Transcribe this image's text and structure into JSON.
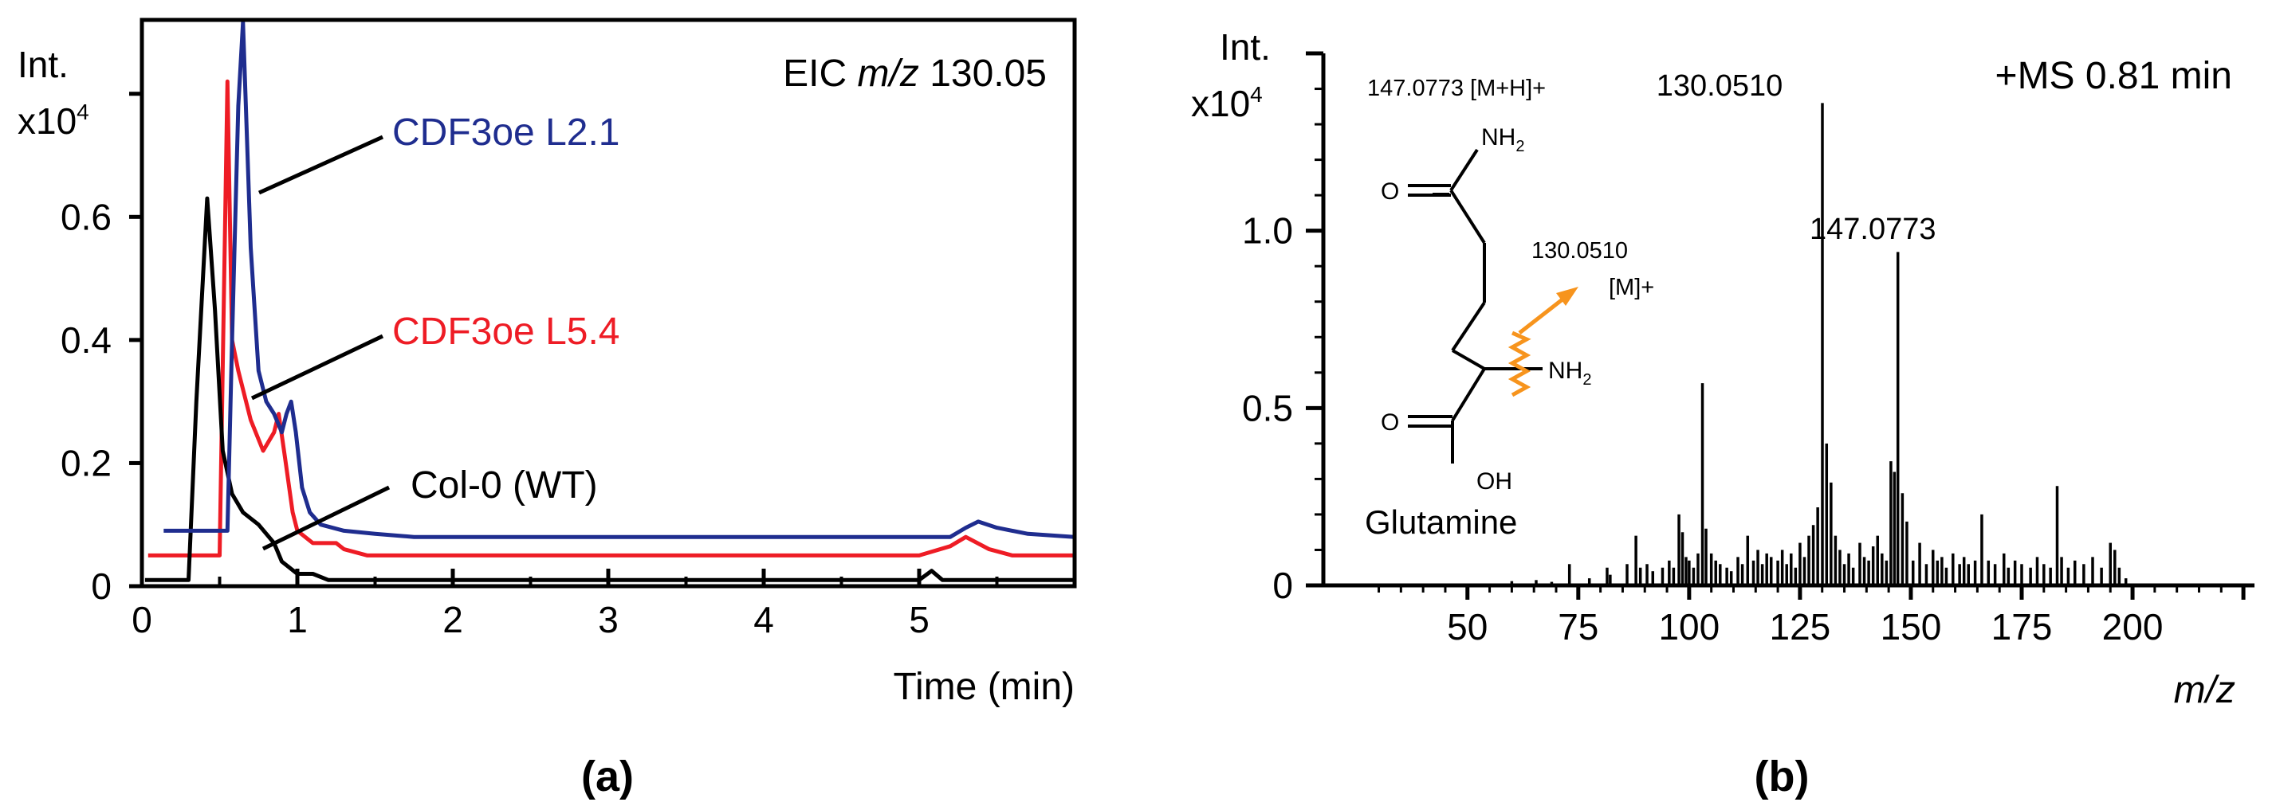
{
  "panels": {
    "a_label": "(a)",
    "b_label": "(b)"
  },
  "chart_data": [
    {
      "type": "line",
      "panel": "(a)",
      "annotation": "EIC",
      "annotation_mz": "m/z",
      "annotation_value": "130.05",
      "ylabel_line1": "Int.",
      "ylabel_line2": "x10",
      "ylabel_exp": "4",
      "xlabel": "Time (min)",
      "xlim": [
        0,
        6
      ],
      "ylim": [
        0,
        0.92
      ],
      "x_ticks": [
        0,
        1,
        2,
        3,
        4,
        5
      ],
      "x_tick_labels": [
        "0",
        "1",
        "2",
        "3",
        "4",
        "5"
      ],
      "x_minor_ticks": [
        0.5,
        1.5,
        2.5,
        3.5,
        4.5,
        5.5
      ],
      "y_ticks": [
        0,
        0.2,
        0.4,
        0.6,
        0.8
      ],
      "y_tick_labels": [
        "0",
        "0.2",
        "0.4",
        "0.6",
        ""
      ],
      "colors": {
        "L2.1": "#1f2d8f",
        "L5.4": "#ee1c25",
        "WT": "#000000"
      },
      "series": [
        {
          "name": "CDF3oe L2.1",
          "color": "#1f2d8f",
          "x": [
            0.14,
            0.55,
            0.58,
            0.62,
            0.65,
            0.7,
            0.75,
            0.8,
            0.85,
            0.9,
            0.93,
            0.96,
            0.99,
            1.03,
            1.08,
            1.15,
            1.3,
            1.5,
            1.75,
            2.0,
            3.0,
            4.0,
            5.0,
            5.2,
            5.3,
            5.38,
            5.5,
            5.7,
            6.0
          ],
          "y": [
            0.09,
            0.09,
            0.4,
            0.78,
            0.99,
            0.55,
            0.35,
            0.3,
            0.28,
            0.25,
            0.28,
            0.3,
            0.25,
            0.16,
            0.12,
            0.1,
            0.09,
            0.085,
            0.08,
            0.08,
            0.08,
            0.08,
            0.08,
            0.08,
            0.095,
            0.105,
            0.095,
            0.085,
            0.08
          ]
        },
        {
          "name": "CDF3oe L5.4",
          "color": "#ee1c25",
          "x": [
            0.04,
            0.5,
            0.55,
            0.58,
            0.62,
            0.7,
            0.78,
            0.85,
            0.88,
            0.92,
            0.97,
            1.0,
            1.1,
            1.25,
            1.3,
            1.45,
            2.0,
            3.0,
            4.0,
            5.0,
            5.2,
            5.3,
            5.45,
            5.6,
            6.0
          ],
          "y": [
            0.05,
            0.05,
            0.82,
            0.4,
            0.35,
            0.27,
            0.22,
            0.25,
            0.28,
            0.21,
            0.12,
            0.09,
            0.07,
            0.07,
            0.06,
            0.05,
            0.05,
            0.05,
            0.05,
            0.05,
            0.065,
            0.08,
            0.06,
            0.05,
            0.05
          ]
        },
        {
          "name": "Col-0 (WT)",
          "color": "#000000",
          "x": [
            0.02,
            0.3,
            0.35,
            0.42,
            0.47,
            0.52,
            0.58,
            0.65,
            0.75,
            0.85,
            0.9,
            1.0,
            1.1,
            1.2,
            2.0,
            3.0,
            4.0,
            5.0,
            5.08,
            5.15,
            5.3,
            6.0
          ],
          "y": [
            0.01,
            0.01,
            0.3,
            0.63,
            0.45,
            0.22,
            0.15,
            0.12,
            0.1,
            0.07,
            0.04,
            0.02,
            0.02,
            0.01,
            0.01,
            0.01,
            0.01,
            0.01,
            0.025,
            0.01,
            0.01,
            0.01
          ]
        }
      ],
      "series_labels": [
        "CDF3oe L2.1",
        "CDF3oe L5.4",
        "Col-0 (WT)"
      ]
    },
    {
      "type": "bar",
      "subtype": "mass-spectrum",
      "panel": "(b)",
      "annotation": "+MS 0.81 min",
      "ylabel_line1": "Int.",
      "ylabel_line2": "x10",
      "ylabel_exp": "4",
      "xlabel": "m/z",
      "xlim": [
        25,
        225
      ],
      "ylim": [
        0,
        1.5
      ],
      "x_ticks": [
        50,
        75,
        100,
        125,
        150,
        175,
        200
      ],
      "x_tick_labels": [
        "50",
        "75",
        "100",
        "125",
        "150",
        "175",
        "200"
      ],
      "y_ticks": [
        0,
        0.5,
        1.0,
        1.5
      ],
      "y_tick_labels": [
        "0",
        "0.5",
        "1.0",
        ""
      ],
      "peak_labels": [
        "130.0510",
        "147.0773"
      ],
      "peaks": {
        "mz": [
          60.0,
          65.5,
          69.0,
          73.0,
          77.5,
          81.5,
          82.2,
          86.0,
          88.0,
          89.0,
          90.5,
          91.8,
          94.0,
          95.5,
          96.5,
          97.7,
          98.5,
          99.3,
          100.0,
          101.0,
          102.0,
          103.0,
          103.8,
          105.0,
          106.0,
          107.0,
          108.5,
          109.5,
          111.0,
          112.0,
          113.2,
          114.5,
          115.5,
          116.5,
          117.5,
          118.5,
          120.0,
          121.0,
          122.0,
          123.0,
          124.0,
          125.0,
          126.0,
          127.0,
          128.0,
          129.0,
          130.05,
          131.0,
          132.0,
          133.0,
          134.0,
          135.0,
          136.0,
          137.0,
          138.5,
          139.5,
          140.5,
          141.5,
          142.5,
          143.5,
          144.5,
          145.5,
          146.3,
          147.08,
          148.1,
          149.1,
          150.5,
          152.0,
          153.5,
          155.0,
          156.0,
          157.0,
          158.0,
          159.5,
          161.0,
          162.0,
          163.0,
          164.5,
          166.0,
          167.5,
          169.0,
          171.0,
          172.0,
          173.5,
          175.0,
          177.0,
          178.5,
          180.0,
          181.5,
          183.0,
          184.0,
          185.5,
          187.0,
          189.0,
          191.0,
          193.0,
          195.0,
          196.0,
          197.0,
          198.5
        ],
        "intensity": [
          0.012,
          0.015,
          0.01,
          0.06,
          0.02,
          0.05,
          0.03,
          0.06,
          0.14,
          0.05,
          0.06,
          0.04,
          0.05,
          0.07,
          0.05,
          0.2,
          0.15,
          0.08,
          0.07,
          0.05,
          0.09,
          0.57,
          0.16,
          0.09,
          0.07,
          0.06,
          0.05,
          0.04,
          0.08,
          0.06,
          0.14,
          0.07,
          0.1,
          0.06,
          0.09,
          0.08,
          0.07,
          0.1,
          0.06,
          0.09,
          0.05,
          0.12,
          0.08,
          0.14,
          0.17,
          0.22,
          1.36,
          0.4,
          0.29,
          0.14,
          0.1,
          0.06,
          0.09,
          0.05,
          0.12,
          0.08,
          0.07,
          0.11,
          0.14,
          0.09,
          0.07,
          0.35,
          0.32,
          0.94,
          0.26,
          0.18,
          0.07,
          0.12,
          0.06,
          0.1,
          0.07,
          0.08,
          0.05,
          0.09,
          0.06,
          0.08,
          0.06,
          0.07,
          0.2,
          0.07,
          0.06,
          0.09,
          0.05,
          0.07,
          0.06,
          0.05,
          0.08,
          0.06,
          0.05,
          0.28,
          0.08,
          0.05,
          0.07,
          0.06,
          0.08,
          0.05,
          0.12,
          0.1,
          0.05,
          0.02
        ]
      },
      "inset": {
        "name": "Glutamine",
        "precursor_label": "147.0773 [M+H]+",
        "fragment_label_line1": "130.0510",
        "fragment_label_line2": "[M]+",
        "o_label": "O",
        "nh2_label": "NH",
        "nh2_sub": "2",
        "oh_label": "OH",
        "arrow_color": "#f7941d"
      }
    }
  ]
}
